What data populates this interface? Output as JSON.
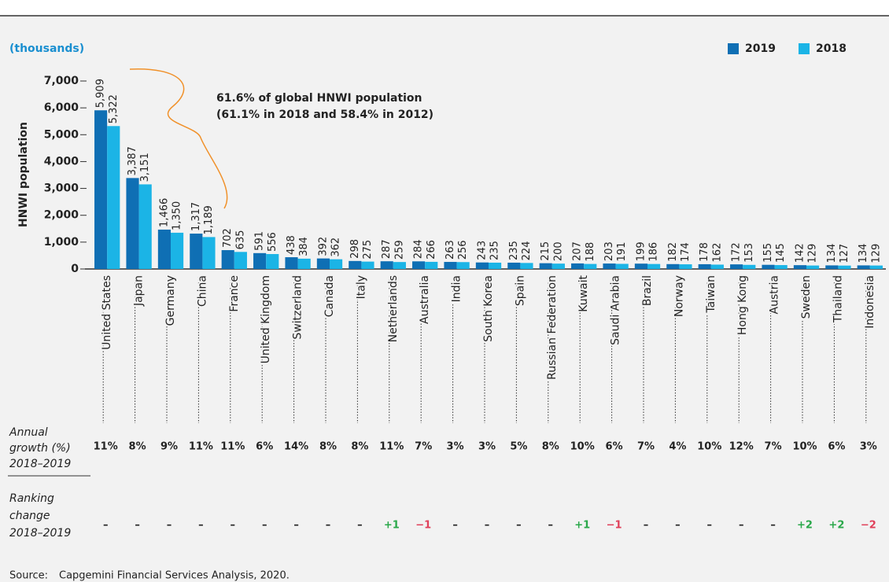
{
  "chart_data": {
    "type": "bar",
    "unit_label": "(thousands)",
    "y_label": "HNWI population",
    "annotation": [
      "61.6% of global HNWI population",
      "(61.1% in 2018 and 58.4% in 2012)"
    ],
    "categories": [
      "United States",
      "Japan",
      "Germany",
      "China",
      "France",
      "United Kingdom",
      "Switzerland",
      "Canada",
      "Italy",
      "Netherlands",
      "Australia",
      "India",
      "South Korea",
      "Spain",
      "Russian Federation",
      "Kuwait",
      "Saudi Arabia",
      "Brazil",
      "Norway",
      "Taiwan",
      "Hong Kong",
      "Austria",
      "Sweden",
      "Thailand",
      "Indonesia"
    ],
    "series": [
      {
        "name": "2019",
        "color": "#0f6fb4",
        "values": [
          5909,
          3387,
          1466,
          1317,
          702,
          591,
          438,
          392,
          298,
          287,
          284,
          263,
          243,
          235,
          215,
          207,
          203,
          199,
          182,
          178,
          172,
          155,
          142,
          134,
          134
        ],
        "value_labels": [
          "5,909",
          "3,387",
          "1,466",
          "1,317",
          "702",
          "591",
          "438",
          "392",
          "298",
          "287",
          "284",
          "263",
          "243",
          "235",
          "215",
          "207",
          "203",
          "199",
          "182",
          "178",
          "172",
          "155",
          "142",
          "134",
          "134"
        ]
      },
      {
        "name": "2018",
        "color": "#1bb4e6",
        "values": [
          5322,
          3151,
          1350,
          1189,
          635,
          556,
          384,
          362,
          275,
          259,
          266,
          256,
          235,
          224,
          200,
          188,
          191,
          186,
          174,
          162,
          153,
          145,
          129,
          127,
          129
        ],
        "value_labels": [
          "5,322",
          "3,151",
          "1,350",
          "1,189",
          "635",
          "556",
          "384",
          "362",
          "275",
          "259",
          "266",
          "256",
          "235",
          "224",
          "200",
          "188",
          "191",
          "186",
          "174",
          "162",
          "153",
          "145",
          "129",
          "127",
          "129"
        ]
      }
    ],
    "ylim": [
      0,
      7000
    ],
    "yticks": [
      0,
      {
        "value": 1000,
        "label": "1,000"
      },
      {
        "value": 2000,
        "label": "2,000"
      },
      {
        "value": 3000,
        "label": "3,000"
      },
      {
        "value": 4000,
        "label": "4,000"
      },
      {
        "value": 5000,
        "label": "5,000"
      },
      {
        "value": 6000,
        "label": "6,000"
      },
      {
        "value": 7000,
        "label": "7,000"
      }
    ],
    "legend": "top-right",
    "growth": {
      "label": [
        "Annual",
        "growth (%)",
        "2018–2019"
      ],
      "values": [
        11,
        8,
        9,
        11,
        11,
        6,
        14,
        8,
        8,
        11,
        7,
        3,
        3,
        5,
        8,
        10,
        6,
        7,
        4,
        10,
        12,
        7,
        10,
        6,
        3
      ],
      "value_labels": [
        "11%",
        "8%",
        "9%",
        "11%",
        "11%",
        "6%",
        "14%",
        "8%",
        "8%",
        "11%",
        "7%",
        "3%",
        "3%",
        "5%",
        "8%",
        "10%",
        "6%",
        "7%",
        "4%",
        "10%",
        "12%",
        "7%",
        "10%",
        "6%",
        "3%"
      ]
    },
    "ranking": {
      "label": [
        "Ranking",
        "change",
        "2018–2019"
      ],
      "values": [
        "–",
        "–",
        "–",
        "–",
        "–",
        "–",
        "–",
        "–",
        "–",
        "+1",
        "−1",
        "–",
        "–",
        "–",
        "–",
        "+1",
        "−1",
        "–",
        "–",
        "–",
        "–",
        "–",
        "+2",
        "+2",
        "−2"
      ]
    },
    "source": [
      "Source:",
      "Capgemini Financial Services Analysis, 2020."
    ]
  }
}
